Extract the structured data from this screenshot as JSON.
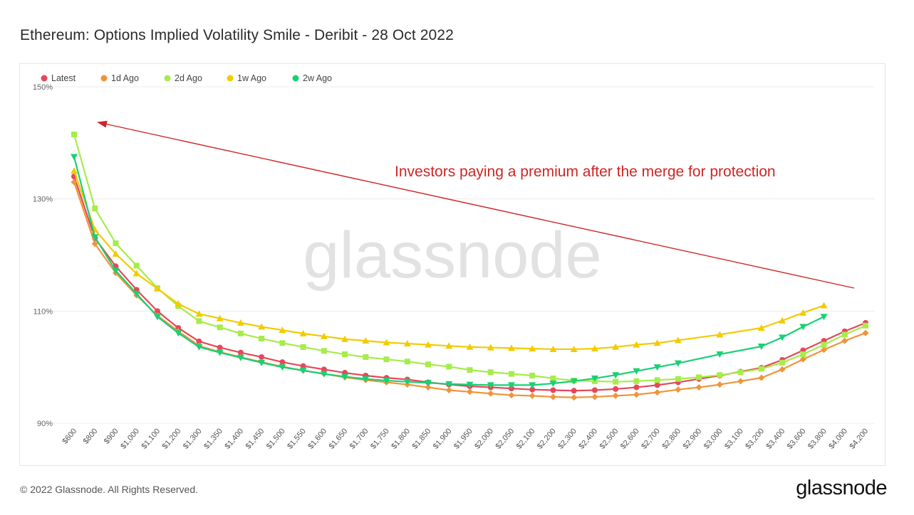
{
  "page": {
    "title": "Ethereum: Options Implied Volatility Smile - Deribit - 28 Oct 2022",
    "footer_copyright": "© 2022 Glassnode. All Rights Reserved.",
    "footer_logo": "glassnode"
  },
  "chart_data": {
    "type": "line",
    "title": "Ethereum: Options Implied Volatility Smile - Deribit - 28 Oct 2022",
    "xlabel": "",
    "ylabel": "",
    "ylim": [
      90,
      150
    ],
    "y_ticks": [
      "90%",
      "110%",
      "130%",
      "150%"
    ],
    "y_tick_values": [
      90,
      110,
      130,
      150
    ],
    "grid": true,
    "legend_position": "top-left",
    "watermark": "glassnode",
    "annotation": {
      "text": "Investors paying a premium after the merge for protection",
      "color": "#d02525"
    },
    "categories": [
      "$600",
      "$800",
      "$900",
      "$1,000",
      "$1,100",
      "$1,200",
      "$1,300",
      "$1,350",
      "$1,400",
      "$1,450",
      "$1,500",
      "$1,550",
      "$1,600",
      "$1,650",
      "$1,700",
      "$1,750",
      "$1,800",
      "$1,850",
      "$1,900",
      "$1,950",
      "$2,000",
      "$2,050",
      "$2,100",
      "$2,200",
      "$2,300",
      "$2,400",
      "$2,500",
      "$2,600",
      "$2,700",
      "$2,800",
      "$2,900",
      "$3,000",
      "$3,100",
      "$3,200",
      "$3,400",
      "$3,600",
      "$3,800",
      "$4,000",
      "$4,200"
    ],
    "series": [
      {
        "name": "Latest",
        "color": "#e5485a",
        "marker": "circle",
        "values": [
          134.0,
          123.0,
          118.0,
          113.8,
          110.0,
          107.0,
          104.6,
          103.5,
          102.6,
          101.8,
          100.9,
          100.2,
          99.6,
          99.0,
          98.5,
          98.1,
          97.8,
          97.3,
          96.9,
          96.6,
          96.4,
          96.2,
          96.0,
          95.9,
          95.8,
          95.9,
          96.1,
          96.4,
          96.8,
          97.3,
          97.9,
          98.5,
          99.2,
          99.9,
          101.3,
          103.0,
          104.7,
          106.4,
          107.9
        ]
      },
      {
        "name": "1d Ago",
        "color": "#f0943a",
        "marker": "diamond",
        "values": [
          133.0,
          122.0,
          116.8,
          112.8,
          109.2,
          106.4,
          103.8,
          102.7,
          101.8,
          100.9,
          100.1,
          99.4,
          98.8,
          98.2,
          97.7,
          97.3,
          96.9,
          96.4,
          95.9,
          95.6,
          95.3,
          95.0,
          94.9,
          94.7,
          94.6,
          94.7,
          94.9,
          95.1,
          95.5,
          96.0,
          96.4,
          96.9,
          97.5,
          98.1,
          99.6,
          101.4,
          103.1,
          104.7,
          106.1
        ]
      },
      {
        "name": "2d Ago",
        "color": "#a6ec4a",
        "marker": "square",
        "values": [
          141.5,
          128.3,
          122.1,
          118.1,
          114.1,
          110.9,
          108.2,
          107.1,
          106.0,
          105.1,
          104.3,
          103.6,
          102.9,
          102.3,
          101.8,
          101.4,
          101.0,
          100.5,
          100.1,
          99.5,
          99.1,
          98.8,
          98.5,
          98.0,
          97.6,
          97.5,
          97.4,
          97.5,
          97.7,
          97.9,
          98.2,
          98.6,
          99.1,
          99.7,
          100.8,
          102.3,
          104.0,
          105.8,
          107.4
        ]
      },
      {
        "name": "1w Ago",
        "color": "#f2cb00",
        "marker": "triangle-up",
        "values": [
          135.0,
          124.5,
          120.2,
          116.7,
          114.0,
          111.3,
          109.5,
          108.7,
          107.9,
          107.2,
          106.6,
          106.0,
          105.5,
          105.0,
          104.7,
          104.4,
          104.2,
          104.0,
          103.8,
          103.6,
          103.5,
          103.4,
          103.3,
          103.2,
          103.2,
          103.3,
          103.6,
          104.0,
          104.3,
          104.8,
          null,
          105.8,
          null,
          107.0,
          108.3,
          109.7,
          111.0,
          null,
          null
        ]
      },
      {
        "name": "2w Ago",
        "color": "#19d075",
        "marker": "triangle-down",
        "values": [
          137.5,
          123.2,
          117.2,
          113.1,
          109.0,
          106.1,
          103.6,
          102.6,
          101.7,
          100.8,
          100.0,
          99.4,
          98.8,
          98.3,
          97.9,
          97.6,
          97.4,
          97.2,
          97.0,
          96.9,
          96.8,
          96.8,
          96.8,
          97.1,
          97.5,
          98.0,
          98.6,
          99.3,
          100.0,
          100.7,
          null,
          102.3,
          null,
          103.7,
          105.3,
          107.2,
          109.0,
          null,
          null
        ]
      }
    ]
  }
}
